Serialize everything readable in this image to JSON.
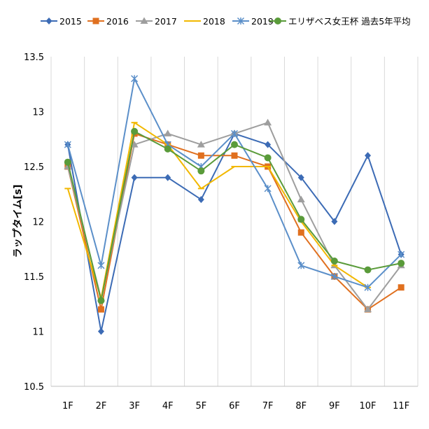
{
  "chart_data": {
    "type": "line",
    "title": "",
    "xlabel": "",
    "ylabel": "ラップタイム[s]",
    "categories": [
      "1F",
      "2F",
      "3F",
      "4F",
      "5F",
      "6F",
      "7F",
      "8F",
      "9F",
      "10F",
      "11F"
    ],
    "yticks": [
      "10.5",
      "11",
      "11.5",
      "12",
      "12.5",
      "13",
      "13.5"
    ],
    "ylim": [
      10.5,
      13.5
    ],
    "grid": "vertical",
    "legend": "top",
    "series": [
      {
        "name": "2015",
        "color": "#3c6bb5",
        "marker": "diamond",
        "values": [
          12.7,
          11.0,
          12.4,
          12.4,
          12.2,
          12.8,
          12.7,
          12.4,
          12.0,
          12.6,
          11.7
        ]
      },
      {
        "name": "2016",
        "color": "#e0701f",
        "marker": "square",
        "values": [
          12.5,
          11.2,
          12.8,
          12.7,
          12.6,
          12.6,
          12.5,
          11.9,
          11.5,
          11.2,
          11.4
        ]
      },
      {
        "name": "2017",
        "color": "#9e9e9e",
        "marker": "triangle",
        "values": [
          12.5,
          11.3,
          12.7,
          12.8,
          12.7,
          12.8,
          12.9,
          12.2,
          11.6,
          11.2,
          11.6
        ]
      },
      {
        "name": "2018",
        "color": "#f2b800",
        "marker": "line",
        "values": [
          12.3,
          11.3,
          12.9,
          12.7,
          12.3,
          12.5,
          12.5,
          12.0,
          11.6,
          11.4,
          null
        ]
      },
      {
        "name": "2019",
        "color": "#5b8fc9",
        "marker": "star",
        "values": [
          12.7,
          11.6,
          13.3,
          12.7,
          12.5,
          12.8,
          12.3,
          11.6,
          11.5,
          11.4,
          11.7
        ]
      },
      {
        "name": "エリザベス女王杯 過去5年平均",
        "color": "#5a9b3a",
        "marker": "circle",
        "values": [
          12.54,
          11.28,
          12.82,
          12.66,
          12.46,
          12.7,
          12.58,
          12.02,
          11.64,
          11.56,
          11.62
        ]
      }
    ]
  }
}
